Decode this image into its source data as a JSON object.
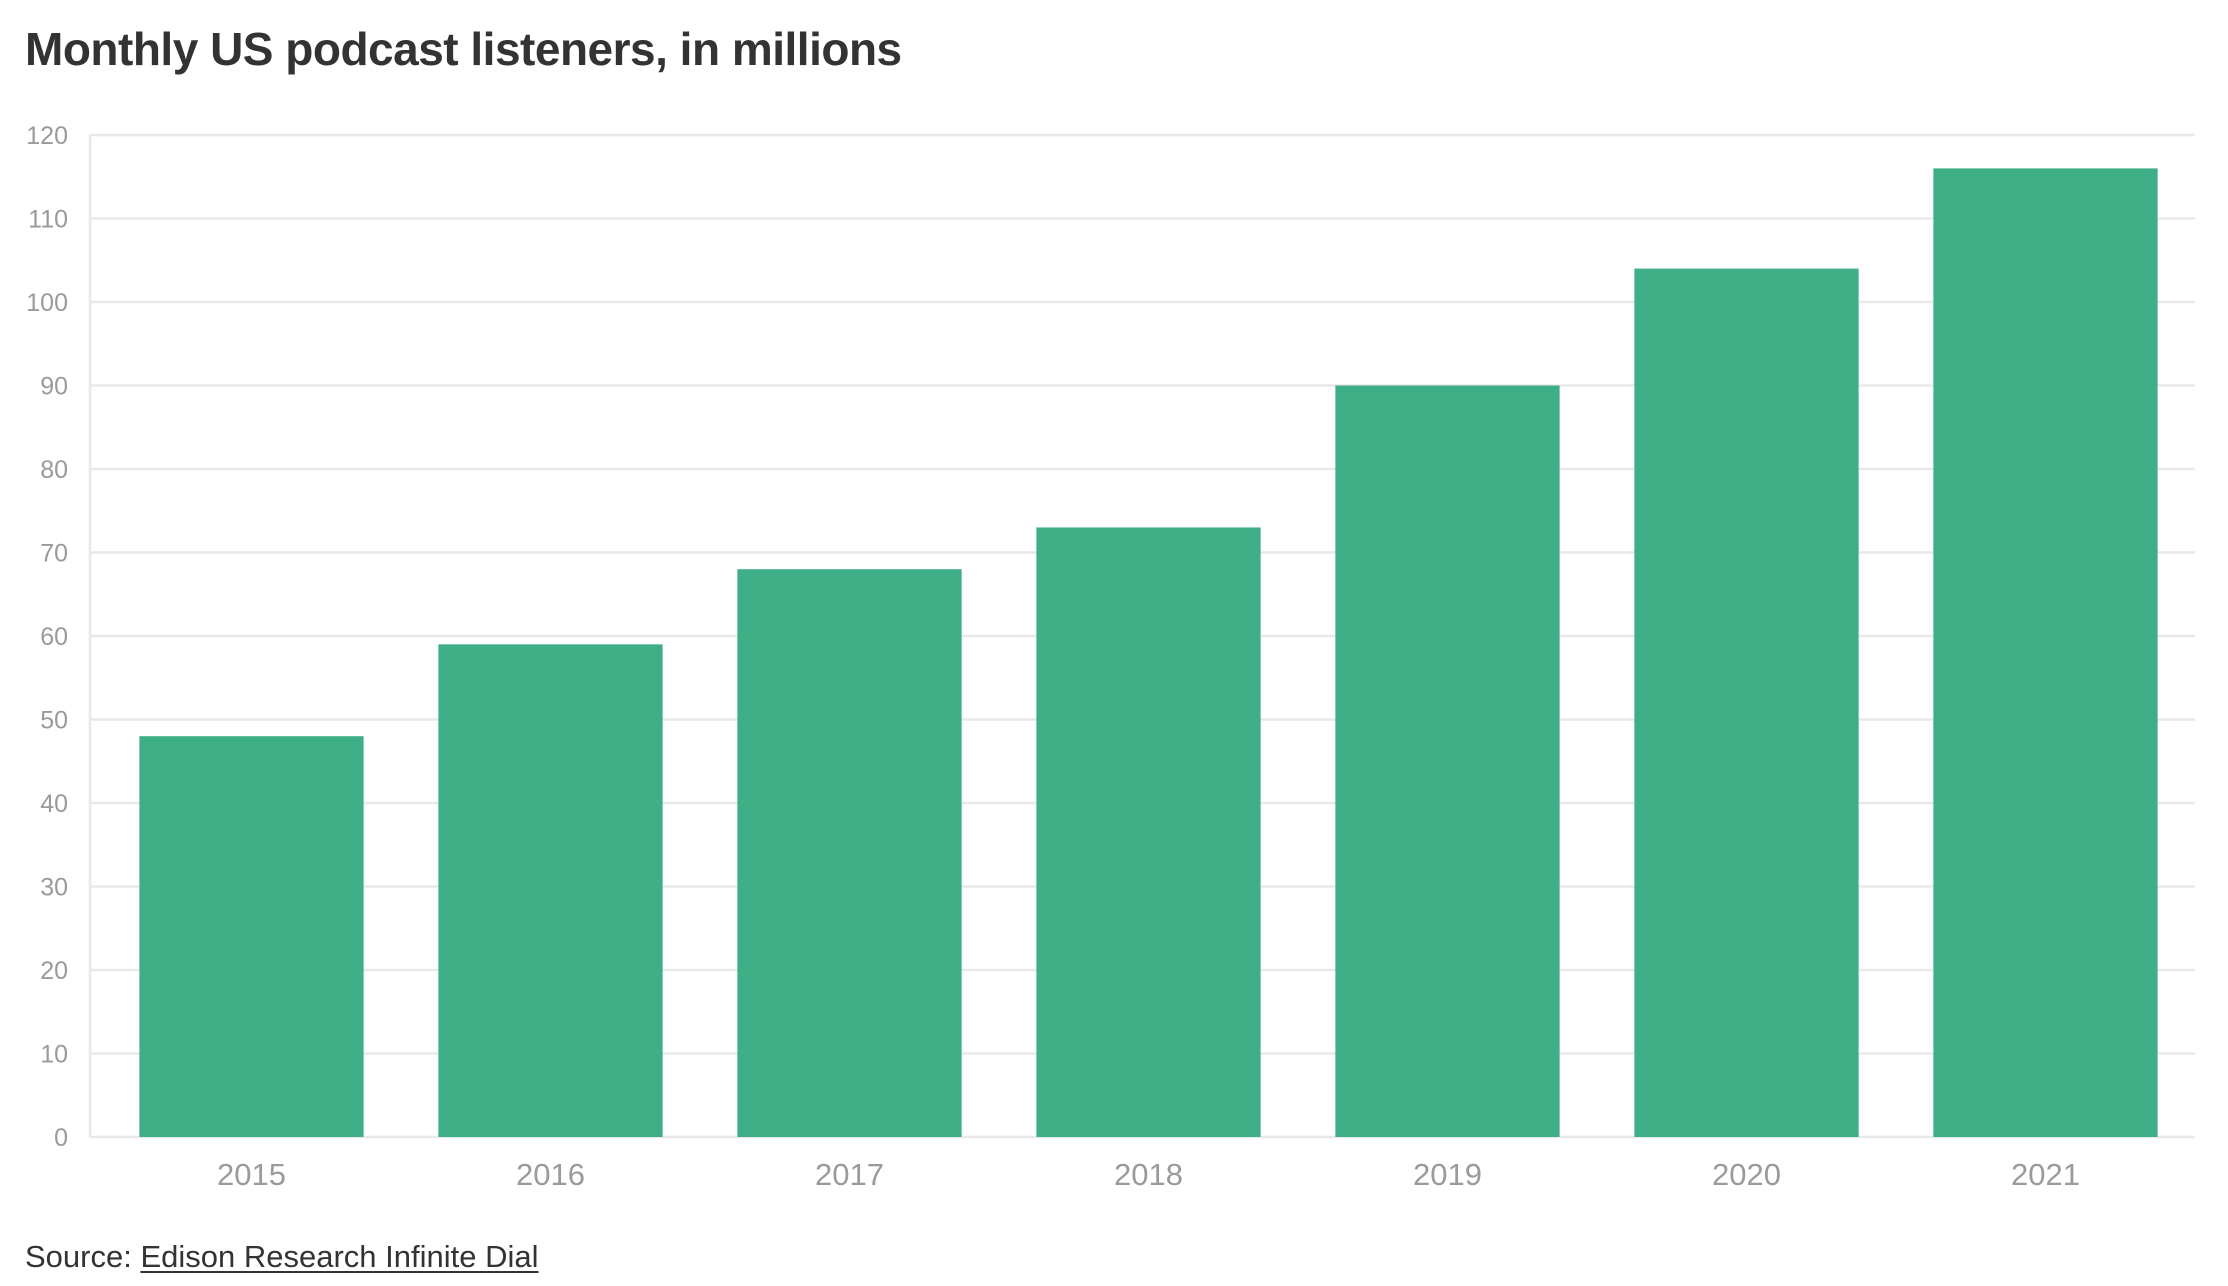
{
  "header": {
    "title": "Monthly US podcast listeners, in millions"
  },
  "chart_data": {
    "type": "bar",
    "title": "Monthly US podcast listeners, in millions",
    "xlabel": "",
    "ylabel": "",
    "categories": [
      "2015",
      "2016",
      "2017",
      "2018",
      "2019",
      "2020",
      "2021"
    ],
    "values": [
      48,
      59,
      68,
      73,
      90,
      104,
      116
    ],
    "ylim": [
      0,
      120
    ],
    "yticks": [
      0,
      10,
      20,
      30,
      40,
      50,
      60,
      70,
      80,
      90,
      100,
      110,
      120
    ],
    "grid": true,
    "legend": "none",
    "bar_color": "#3dae86",
    "grid_color": "#e8e8e8",
    "axis_label_color": "#9a9a9a"
  },
  "footer": {
    "source_prefix": "Source: ",
    "source_link_text": "Edison Research Infinite Dial"
  }
}
